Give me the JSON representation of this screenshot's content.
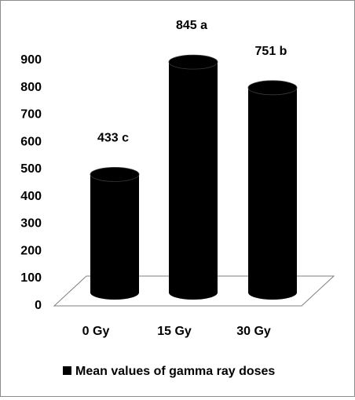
{
  "chart_data": {
    "type": "bar",
    "style": "3d-cylinder",
    "categories": [
      "0 Gy",
      "15 Gy",
      "30 Gy"
    ],
    "series": [
      {
        "name": "Mean values of gamma ray doses",
        "values": [
          433,
          845,
          751
        ],
        "data_labels": [
          "433 c",
          "845 a",
          "751 b"
        ],
        "color": "#000000"
      }
    ],
    "y_ticks": [
      "0",
      "100",
      "200",
      "300",
      "400",
      "500",
      "600",
      "700",
      "800",
      "900"
    ],
    "ylim": [
      0,
      900
    ],
    "grid": false,
    "legend_position": "bottom"
  }
}
